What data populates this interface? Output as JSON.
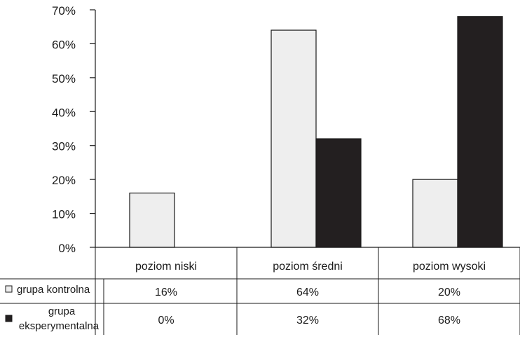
{
  "chart_data": {
    "type": "bar",
    "categories": [
      "poziom niski",
      "poziom średni",
      "poziom wysoki"
    ],
    "series": [
      {
        "name": "grupa kontrolna",
        "values": [
          16,
          64,
          20
        ],
        "labels": [
          "16%",
          "64%",
          "20%"
        ],
        "color": "#eeeeee"
      },
      {
        "name": "grupa eksperymentalna",
        "name_lines": [
          "grupa",
          "eksperymentalna"
        ],
        "values": [
          0,
          32,
          68
        ],
        "labels": [
          "0%",
          "32%",
          "68%"
        ],
        "color": "#231f20"
      }
    ],
    "ylim": [
      0,
      70
    ],
    "yticks": [
      0,
      10,
      20,
      30,
      40,
      50,
      60,
      70
    ],
    "ytick_labels": [
      "0%",
      "10%",
      "20%",
      "30%",
      "40%",
      "50%",
      "60%",
      "70%"
    ],
    "legend": "data-table-rows",
    "grid": false,
    "title": "",
    "xlabel": "",
    "ylabel": ""
  }
}
